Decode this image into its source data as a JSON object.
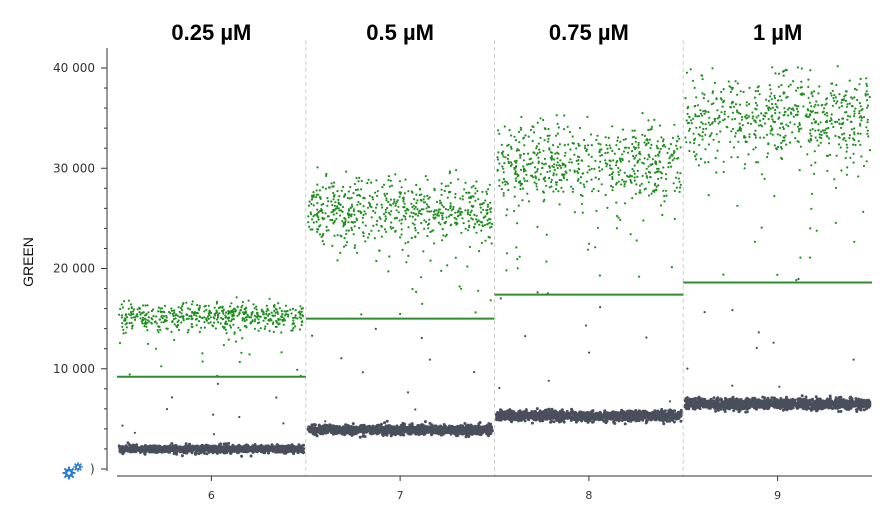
{
  "chart_data": {
    "type": "scatter",
    "ylabel": "GREEN",
    "ylim": [
      0,
      42000
    ],
    "yticks": [
      {
        "value": 10000,
        "label": "10 000"
      },
      {
        "value": 20000,
        "label": "20 000"
      },
      {
        "value": 30000,
        "label": "30 000"
      },
      {
        "value": 40000,
        "label": "40 000"
      }
    ],
    "zero_label": ")",
    "groups": [
      {
        "well": "6",
        "title": "0.25 µM",
        "threshold": 9200,
        "positive_center": 15200,
        "positive_spread": 1600,
        "negative_center": 2000,
        "negative_spread": 500
      },
      {
        "well": "7",
        "title": "0.5 µM",
        "threshold": 15000,
        "positive_center": 25800,
        "positive_spread": 3600,
        "negative_center": 3900,
        "negative_spread": 650
      },
      {
        "well": "8",
        "title": "0.75 µM",
        "threshold": 17400,
        "positive_center": 30600,
        "positive_spread": 4500,
        "negative_center": 5300,
        "negative_spread": 700
      },
      {
        "well": "9",
        "title": "1 µM",
        "threshold": 18600,
        "positive_center": 35200,
        "positive_spread": 5000,
        "negative_center": 6500,
        "negative_spread": 750
      }
    ],
    "colors": {
      "positive": "#1f8f1f",
      "threshold": "#2e8b2e",
      "negative": "#4a4f5c",
      "divider": "#cfcfcf",
      "axis": "#333333",
      "icon": "#2a7fd4"
    },
    "grid": false,
    "legend": "none"
  }
}
